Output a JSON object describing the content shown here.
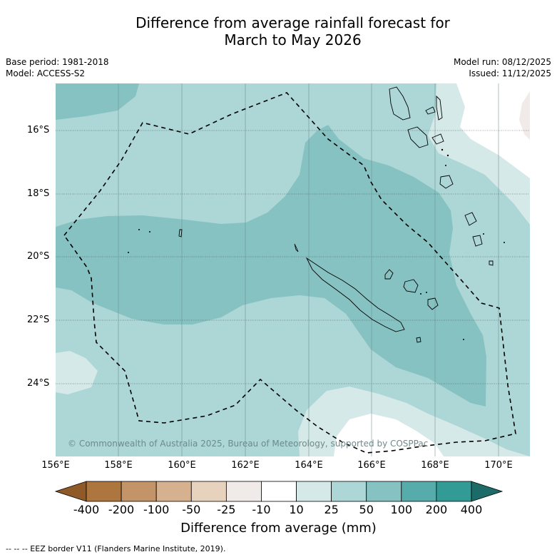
{
  "title_line1": "Difference from average rainfall forecast for",
  "title_line2": "March to May 2026",
  "base_period": "Base period: 1981-2018",
  "model": "Model: ACCESS-S2",
  "model_run": "Model run: 08/12/2025",
  "issued": "Issued: 11/12/2025",
  "latitude_labels": [
    "16°S",
    "18°S",
    "20°S",
    "22°S",
    "24°S"
  ],
  "longitude_labels": [
    "156°E",
    "158°E",
    "160°E",
    "162°E",
    "164°E",
    "166°E",
    "168°E",
    "170°E"
  ],
  "copyright": "© Commonwealth of Australia 2025, Bureau of Meteorology, supported by COSPPac",
  "colorbar": {
    "title": "Difference from average (mm)",
    "ticks": [
      "-400",
      "-200",
      "-100",
      "-50",
      "-25",
      "-10",
      "10",
      "25",
      "50",
      "100",
      "200",
      "400"
    ],
    "colors": [
      "#8f5a28",
      "#ae763f",
      "#c29467",
      "#d5b190",
      "#e7d2bd",
      "#f0ebe8",
      "#ffffff",
      "#d5e9e8",
      "#add6d6",
      "#86c2c2",
      "#56abab",
      "#339b96",
      "#1d6b69"
    ]
  },
  "footnote": "--  --  -- EEZ border V11 (Flanders Marine Institute, 2019)."
}
